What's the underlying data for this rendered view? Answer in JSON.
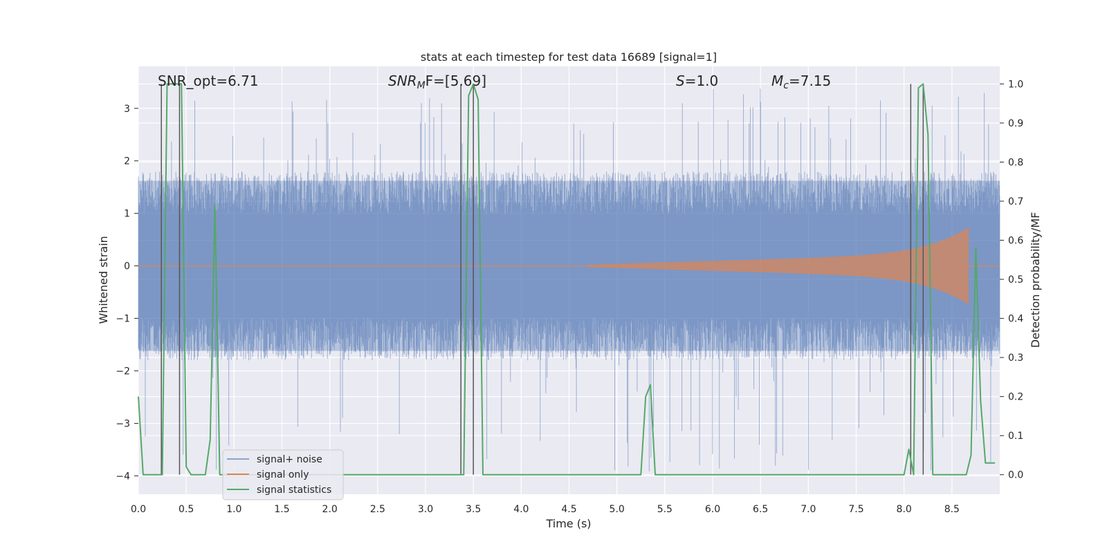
{
  "chart_data": {
    "type": "line",
    "title": "stats at each timestep for test data 16689 [signal=1]",
    "xlabel": "Time (s)",
    "ylabel_left": "Whitened strain",
    "ylabel_right": "Detection probability/MF",
    "xlim": [
      0.0,
      9.0
    ],
    "ylim_left": [
      -4.35,
      3.8
    ],
    "ylim_right": [
      -0.05,
      1.045
    ],
    "xticks": [
      "0.0",
      "0.5",
      "1.0",
      "1.5",
      "2.0",
      "2.5",
      "3.0",
      "3.5",
      "4.0",
      "4.5",
      "5.0",
      "5.5",
      "6.0",
      "6.5",
      "7.0",
      "7.5",
      "8.0",
      "8.5"
    ],
    "yticks_left": [
      "3",
      "2",
      "1",
      "0",
      "−1",
      "−2",
      "−3",
      "−4"
    ],
    "yticks_right": [
      "1.0",
      "0.9",
      "0.8",
      "0.7",
      "0.6",
      "0.5",
      "0.4",
      "0.3",
      "0.2",
      "0.1",
      "0.0"
    ],
    "grid": true,
    "colors": {
      "background": "#eaeaf2",
      "grid": "#ffffff",
      "noise": "#4c72b0",
      "signal": "#dd8452",
      "stats": "#55a868",
      "markers": "#555555"
    },
    "annotations": {
      "snr_opt": "SNR_opt=6.71",
      "snr_mf_label": "SNR",
      "snr_mf_sub": "M",
      "snr_mf_tail": "F=[5.69]",
      "s_label": "S",
      "s_value": "=1.0",
      "mc_label": "M",
      "mc_sub": "c",
      "mc_value": "=7.15"
    },
    "series": [
      {
        "name": "signal+ noise",
        "kind": "noise",
        "axis": "left",
        "x_range": [
          0.0,
          9.0
        ],
        "typical_amplitude": 1.8,
        "peak_max": 3.4,
        "peak_min": -3.95
      },
      {
        "name": "signal only",
        "kind": "chirp",
        "axis": "left",
        "start": 4.7,
        "end": 8.67,
        "peak_amplitude": 0.72
      },
      {
        "name": "signal statistics",
        "kind": "line",
        "axis": "right",
        "x": [
          0.0,
          0.05,
          0.1,
          0.15,
          0.2,
          0.25,
          0.3,
          0.35,
          0.4,
          0.43,
          0.45,
          0.5,
          0.55,
          0.6,
          0.65,
          0.7,
          0.75,
          0.8,
          0.85,
          0.9,
          0.95,
          1.0,
          3.2,
          3.3,
          3.35,
          3.4,
          3.45,
          3.5,
          3.55,
          3.6,
          3.65,
          3.7,
          5.15,
          5.25,
          5.3,
          5.35,
          5.4,
          5.45,
          5.5,
          7.9,
          8.0,
          8.05,
          8.1,
          8.15,
          8.2,
          8.25,
          8.3,
          8.35,
          8.4,
          8.45,
          8.5,
          8.55,
          8.6,
          8.65,
          8.7,
          8.75,
          8.8,
          8.85,
          8.9,
          8.95
        ],
        "y": [
          0.2,
          0.0,
          0.0,
          0.0,
          0.0,
          0.0,
          1.0,
          1.0,
          1.0,
          1.0,
          1.0,
          0.02,
          0.0,
          0.0,
          0.0,
          0.0,
          0.09,
          0.69,
          0.0,
          0.0,
          0.0,
          0.0,
          0.0,
          0.0,
          0.0,
          0.0,
          0.97,
          1.0,
          0.96,
          0.0,
          0.0,
          0.0,
          0.0,
          0.0,
          0.2,
          0.23,
          0.0,
          0.0,
          0.0,
          0.0,
          0.0,
          0.065,
          0.0,
          0.99,
          1.0,
          0.87,
          0.0,
          0.0,
          0.0,
          0.0,
          0.0,
          0.0,
          0.0,
          0.0,
          0.05,
          0.58,
          0.19,
          0.03,
          0.03,
          0.03
        ]
      }
    ],
    "vlines": [
      0.24,
      0.43,
      3.37,
      3.5,
      8.07,
      8.2
    ],
    "legend": {
      "placement": "lower-left",
      "entries": [
        "signal+ noise",
        "signal only",
        "signal statistics"
      ]
    }
  }
}
